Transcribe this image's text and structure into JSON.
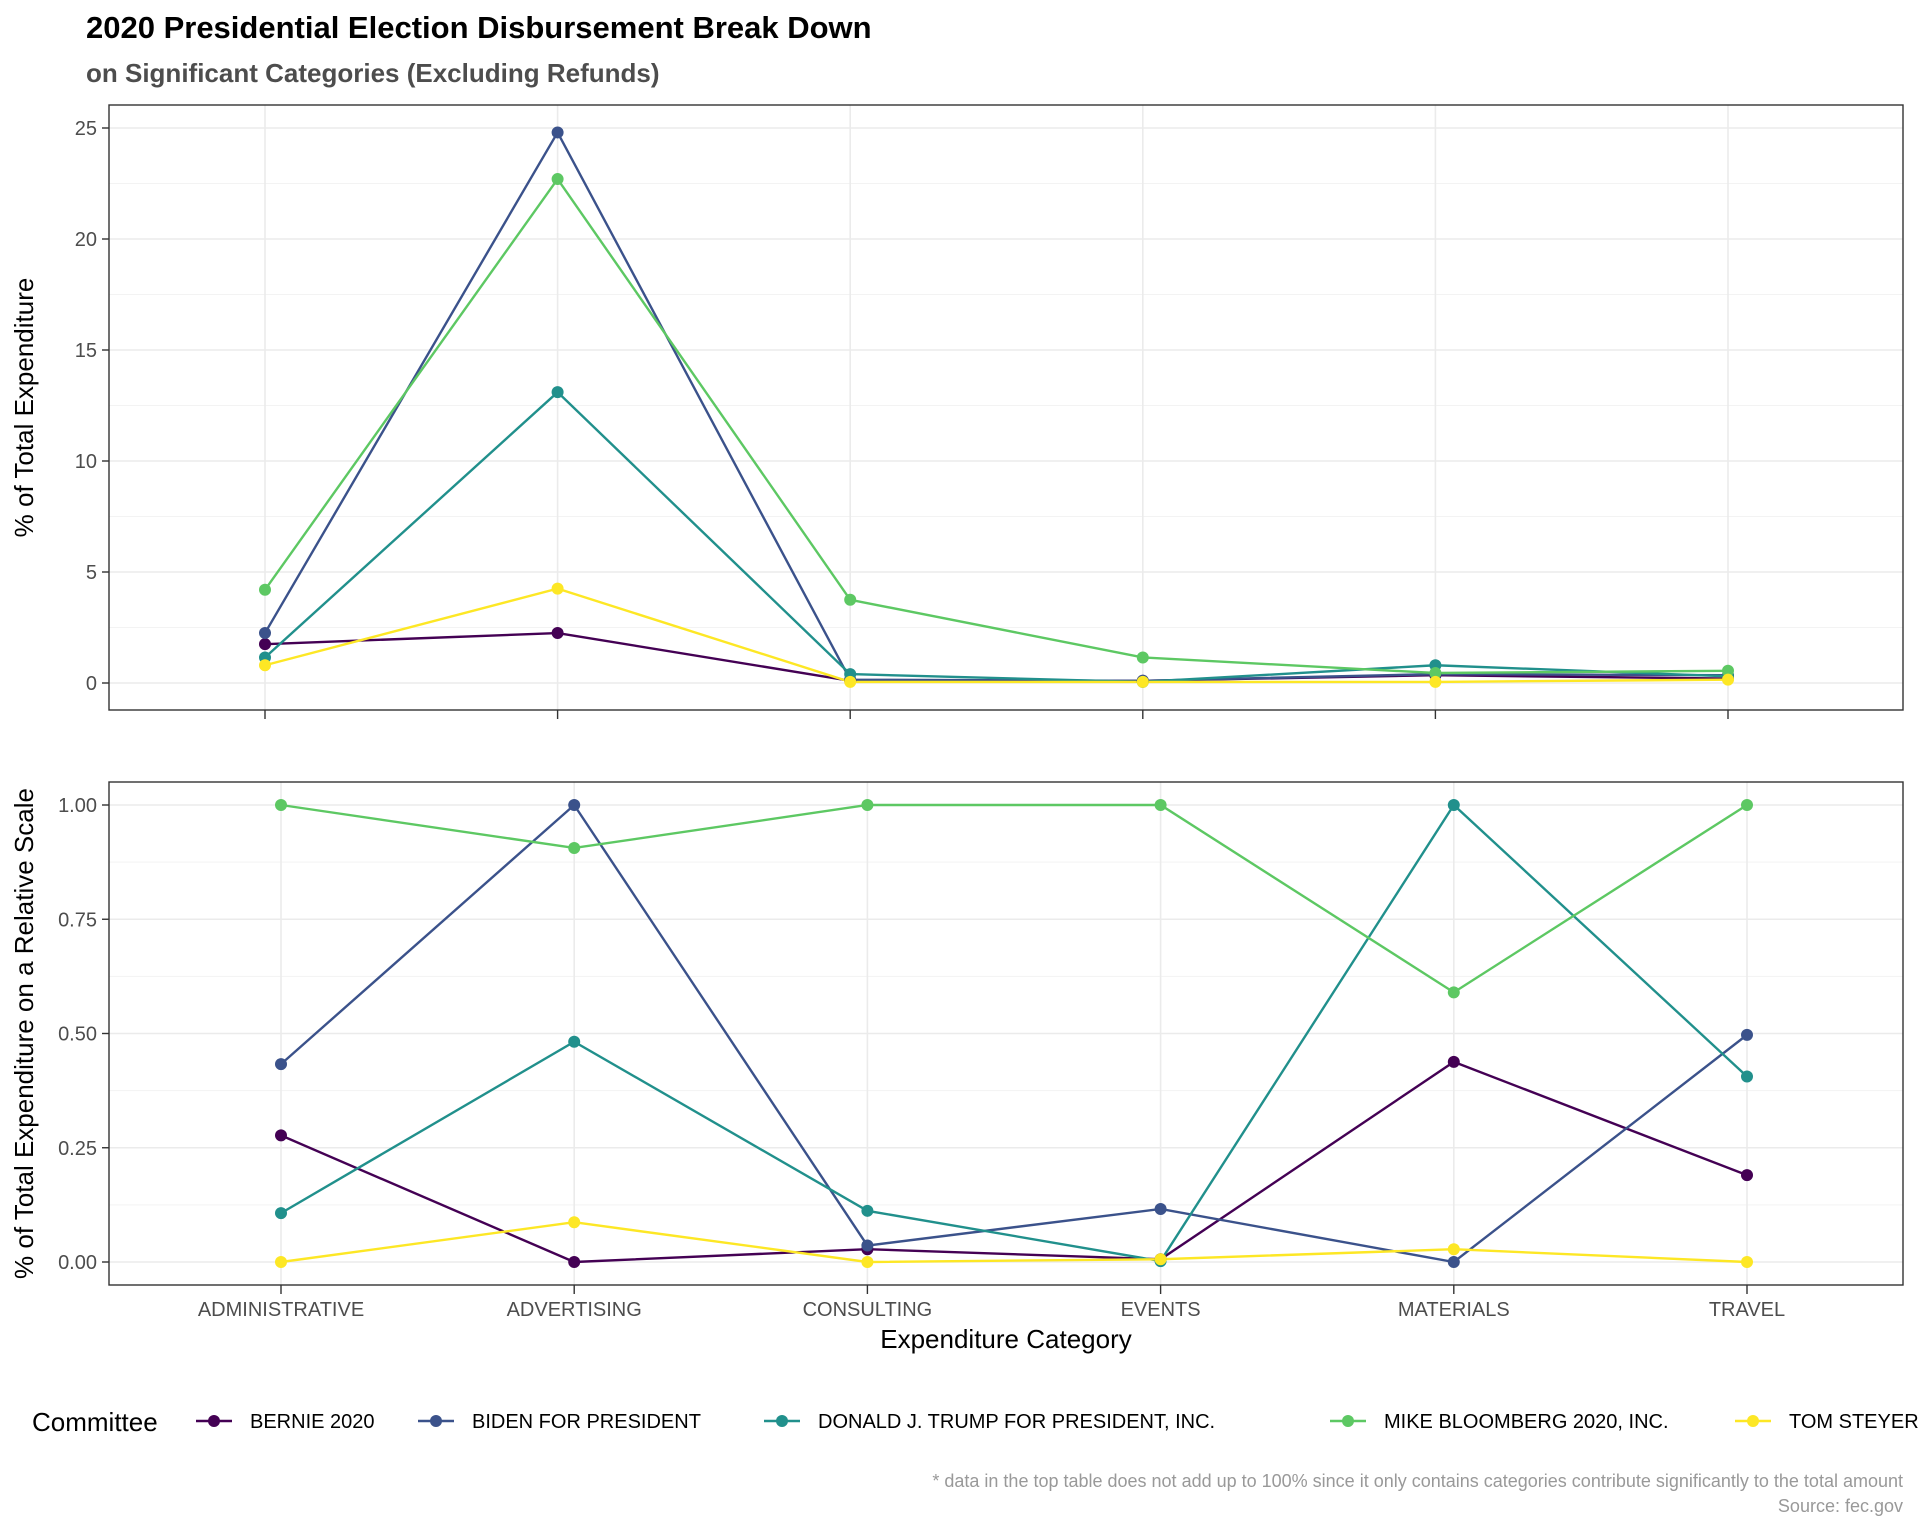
{
  "title": "2020 Presidential Election Disbursement Break Down",
  "subtitle": "on Significant Categories (Excluding Refunds)",
  "legend": {
    "title": "Committee",
    "position": "bottom"
  },
  "caption": {
    "line1": "* data in the top table does not add up to 100% since it only contains categories contribute significantly to the total amount",
    "line2": "Source: fec.gov"
  },
  "chart_data": [
    {
      "type": "line",
      "panel": "top",
      "categories": [
        "ADMINISTRATIVE",
        "ADVERTISING",
        "CONSULTING",
        "EVENTS",
        "MATERIALS",
        "TRAVEL"
      ],
      "xlabel": "",
      "ylabel": "% of Total Expenditure",
      "ylim": [
        0,
        25
      ],
      "yticks": [
        0,
        5,
        10,
        15,
        20,
        25
      ],
      "ytick_labels": [
        "0",
        "5",
        "10",
        "15",
        "20",
        "25"
      ],
      "grid": true,
      "series": [
        {
          "name": "BERNIE 2020",
          "color": "#440154",
          "values": [
            1.75,
            2.25,
            0.1,
            0.1,
            0.35,
            0.2
          ]
        },
        {
          "name": "BIDEN FOR PRESIDENT",
          "color": "#3B528B",
          "values": [
            2.25,
            24.8,
            0.15,
            0.1,
            0.4,
            0.35
          ]
        },
        {
          "name": "DONALD J. TRUMP FOR PRESIDENT, INC.",
          "color": "#21908C",
          "values": [
            1.15,
            13.1,
            0.4,
            0.05,
            0.8,
            0.3
          ]
        },
        {
          "name": "MIKE BLOOMBERG 2020, INC.",
          "color": "#5DC863",
          "values": [
            4.2,
            22.7,
            3.75,
            1.15,
            0.45,
            0.55
          ]
        },
        {
          "name": "TOM STEYER",
          "color": "#FDE725",
          "values": [
            0.8,
            4.25,
            0.05,
            0.05,
            0.05,
            0.15
          ]
        }
      ]
    },
    {
      "type": "line",
      "panel": "bottom",
      "categories": [
        "ADMINISTRATIVE",
        "ADVERTISING",
        "CONSULTING",
        "EVENTS",
        "MATERIALS",
        "TRAVEL"
      ],
      "xlabel": "Expenditure Category",
      "ylabel": "% of Total Expenditure on a Relative Scale",
      "ylim": [
        0,
        1
      ],
      "yticks": [
        0,
        0.25,
        0.5,
        0.75,
        1
      ],
      "ytick_labels": [
        "0.00",
        "0.25",
        "0.50",
        "0.75",
        "1.00"
      ],
      "grid": true,
      "series": [
        {
          "name": "BERNIE 2020",
          "color": "#440154",
          "values": [
            0.277,
            0.0,
            0.028,
            0.006,
            0.438,
            0.19
          ]
        },
        {
          "name": "BIDEN FOR PRESIDENT",
          "color": "#3B528B",
          "values": [
            0.433,
            1.0,
            0.036,
            0.116,
            0.0,
            0.497
          ]
        },
        {
          "name": "DONALD J. TRUMP FOR PRESIDENT, INC.",
          "color": "#21908C",
          "values": [
            0.107,
            0.482,
            0.112,
            0.002,
            1.0,
            0.406
          ]
        },
        {
          "name": "MIKE BLOOMBERG 2020, INC.",
          "color": "#5DC863",
          "values": [
            1.0,
            0.906,
            1.0,
            1.0,
            0.59,
            1.0
          ]
        },
        {
          "name": "TOM STEYER",
          "color": "#FDE725",
          "values": [
            0.0,
            0.087,
            0.0,
            0.006,
            0.028,
            0.0
          ]
        }
      ]
    }
  ]
}
